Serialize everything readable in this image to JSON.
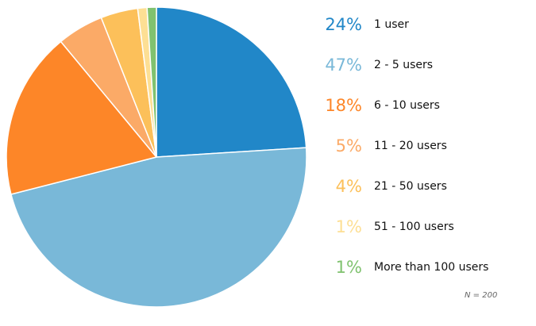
{
  "chart_data": {
    "type": "pie",
    "slices": [
      {
        "label": "1 user",
        "pct_text": "24%",
        "value": 24.0,
        "color": "#2187c8"
      },
      {
        "label": "2 - 5 users",
        "pct_text": "47%",
        "value": 47.0,
        "color": "#79b8d8"
      },
      {
        "label": "6 - 10 users",
        "pct_text": "18%",
        "value": 18.0,
        "color": "#fd8628"
      },
      {
        "label": "11 - 20 users",
        "pct_text": "5%",
        "value": 5.0,
        "color": "#fbaa67"
      },
      {
        "label": "21 - 50 users",
        "pct_text": "4%",
        "value": 4.0,
        "color": "#fcc05a"
      },
      {
        "label": "51 - 100 users",
        "pct_text": "1%",
        "value": 1.0,
        "color": "#fddf94"
      },
      {
        "label": "More than 100 users",
        "pct_text": "1%",
        "value": 1.0,
        "color": "#80c26f"
      }
    ],
    "note": "N = 200"
  }
}
